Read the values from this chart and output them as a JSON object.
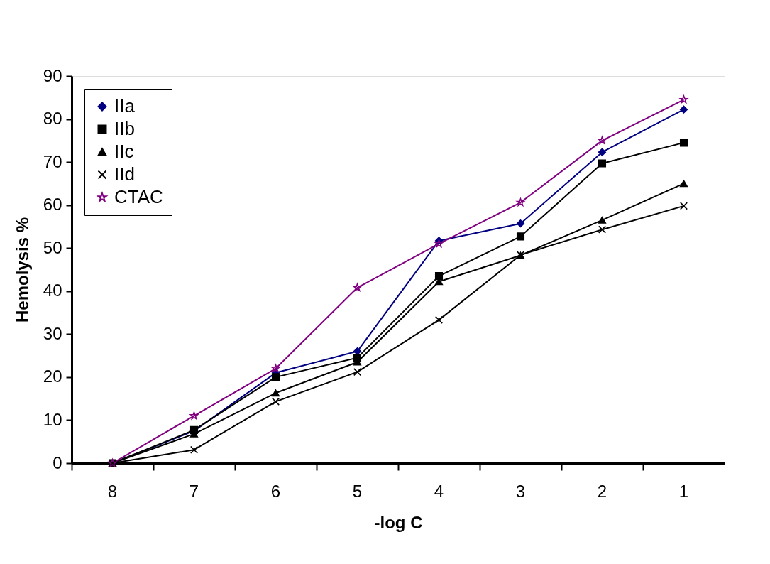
{
  "chart_data": {
    "type": "line",
    "xlabel": "-log C",
    "ylabel": "Hemolysis %",
    "categories": [
      "8",
      "7",
      "6",
      "5",
      "4",
      "3",
      "2",
      "1"
    ],
    "ylim": [
      0,
      90
    ],
    "yticks": [
      0,
      10,
      20,
      30,
      40,
      50,
      60,
      70,
      80,
      90
    ],
    "grid": false,
    "legend": "top left",
    "line_style": "solid",
    "series": [
      {
        "name": "IIa",
        "color": "#000080",
        "marker": "diamond",
        "values": [
          0,
          7.5,
          21,
          26,
          51.7,
          55.7,
          72.3,
          82.2
        ]
      },
      {
        "name": "IIb",
        "color": "#000000",
        "marker": "square",
        "values": [
          0,
          7.7,
          20,
          24.5,
          43.5,
          52.7,
          69.7,
          74.5
        ]
      },
      {
        "name": "IIc",
        "color": "#000000",
        "marker": "triangle",
        "values": [
          0,
          6.8,
          16.3,
          23.5,
          42.2,
          48.3,
          56.5,
          65
        ]
      },
      {
        "name": "IId",
        "color": "#000000",
        "marker": "cross",
        "values": [
          0,
          3.1,
          14.3,
          21.2,
          33.3,
          48.4,
          54.3,
          59.8
        ]
      },
      {
        "name": "CTAC",
        "color": "#800080",
        "marker": "star",
        "values": [
          0,
          11,
          22,
          40.8,
          51,
          60.6,
          75,
          84.5
        ]
      }
    ]
  }
}
